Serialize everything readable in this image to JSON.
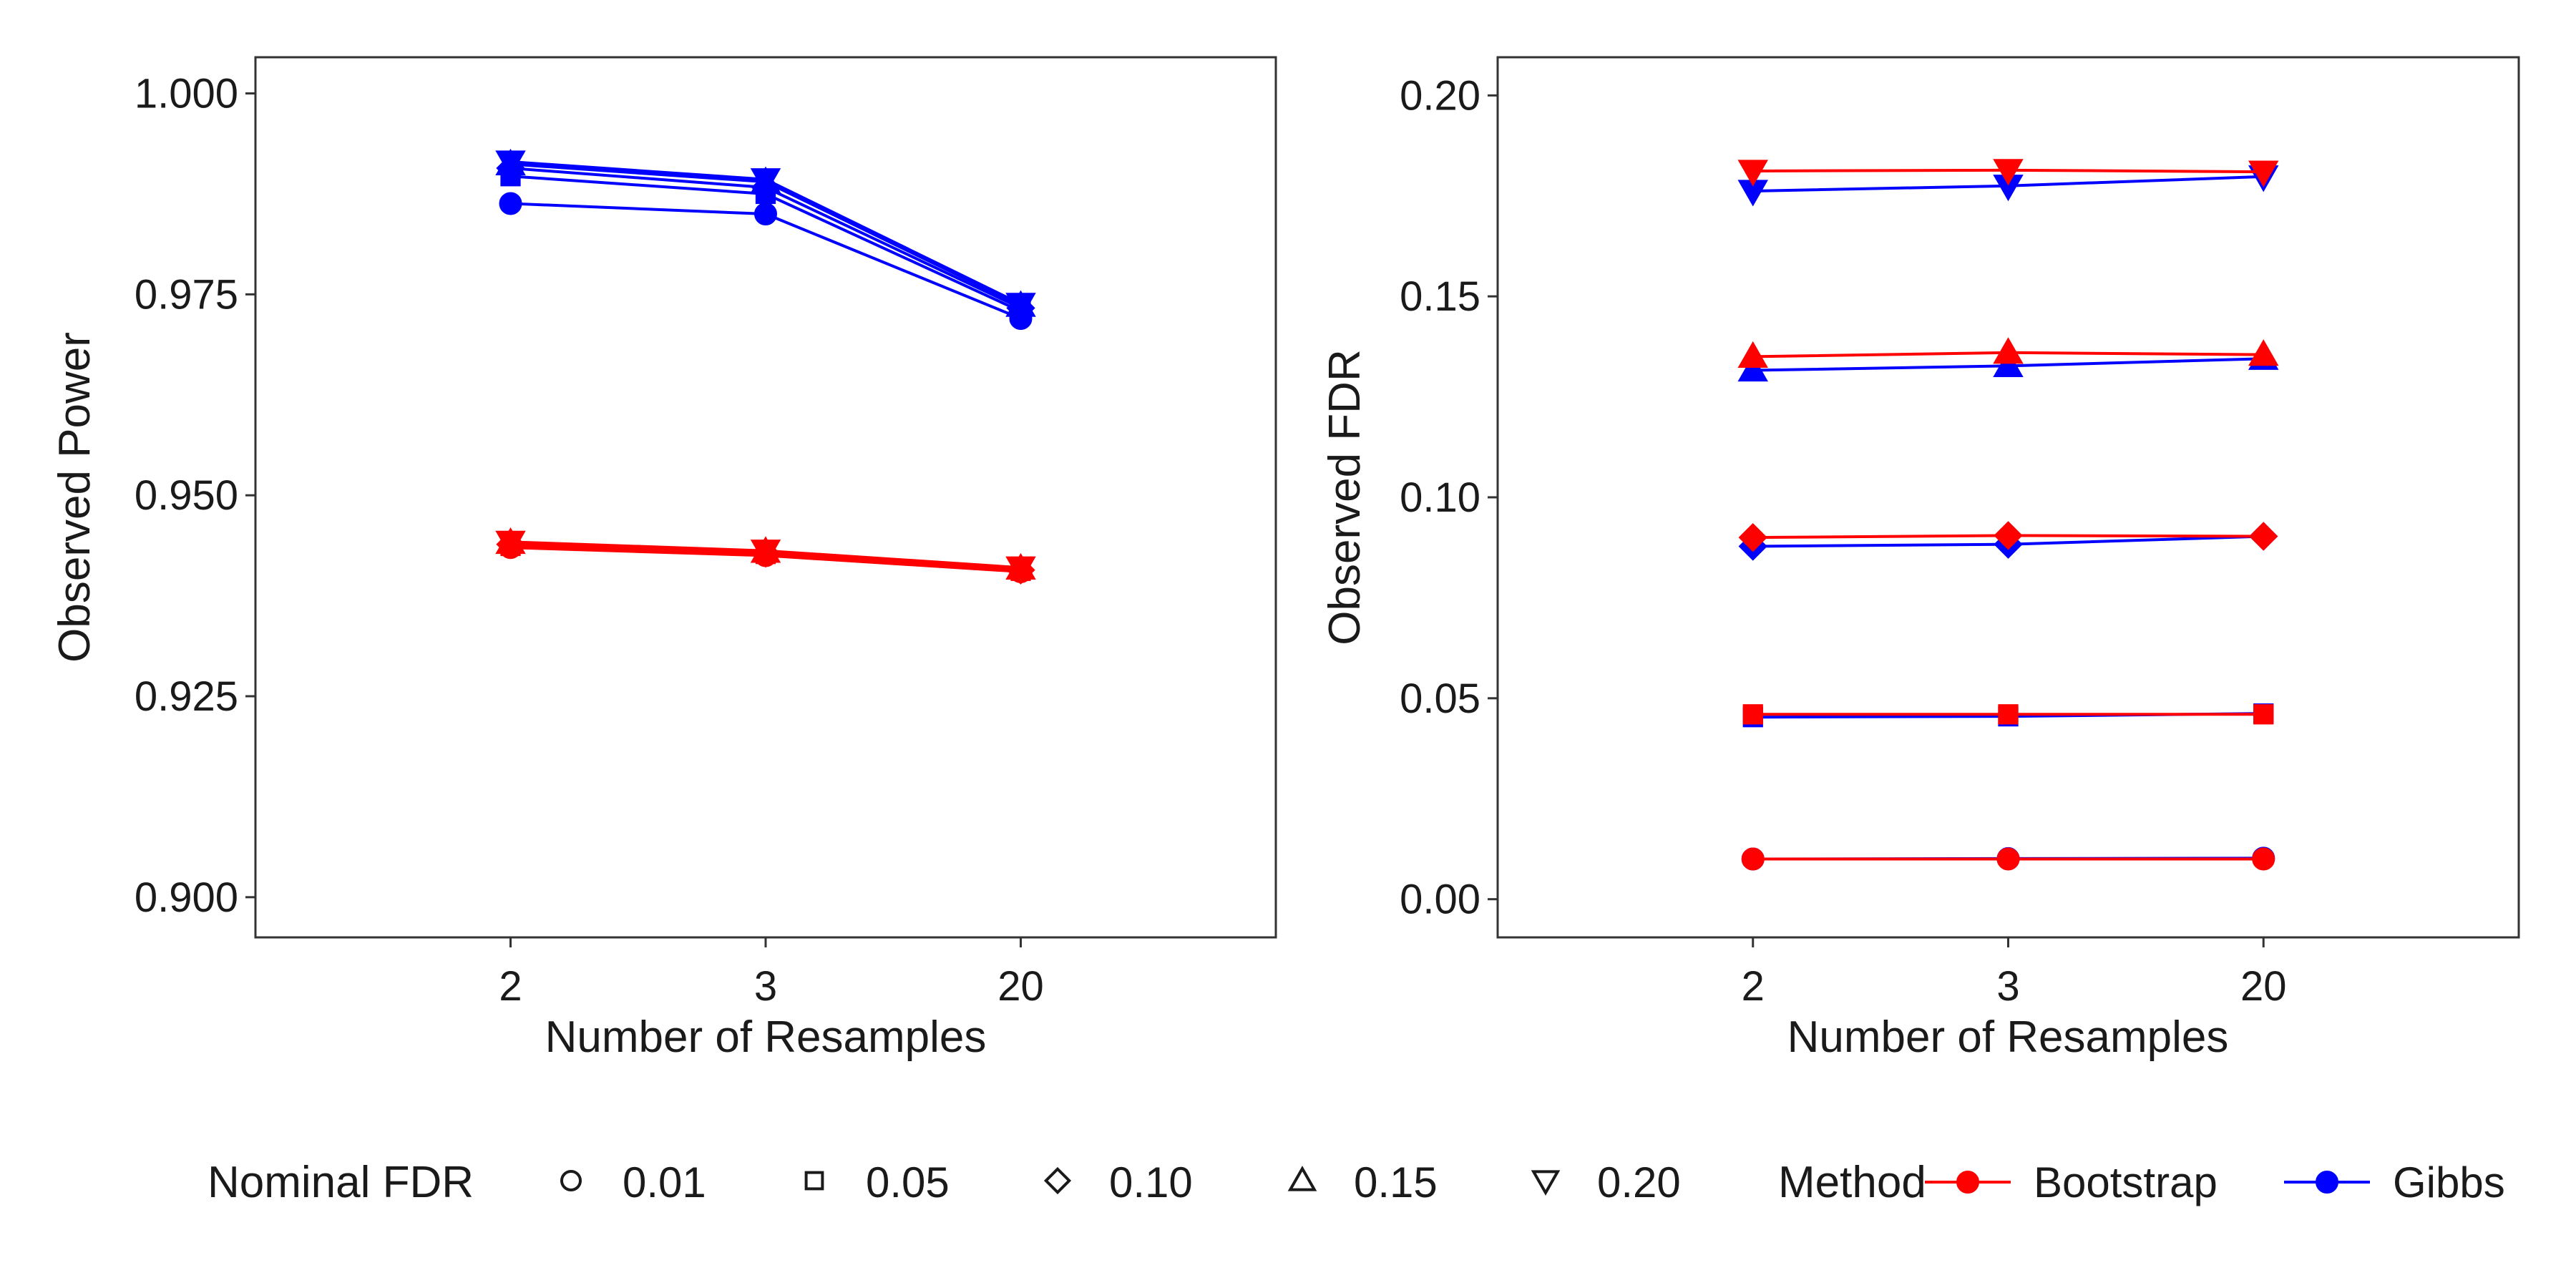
{
  "chart_data": [
    {
      "type": "line",
      "panel": "left",
      "xlabel": "Number of Resamples",
      "ylabel": "Observed Power",
      "categories": [
        "2",
        "3",
        "20"
      ],
      "ylim": [
        0.895,
        1.0045
      ],
      "yticks": [
        0.9,
        0.925,
        0.95,
        0.975,
        1.0
      ],
      "ytick_labels": [
        "0.900",
        "0.925",
        "0.950",
        "0.975",
        "1.000"
      ],
      "grid": false,
      "series": [
        {
          "method": "Bootstrap",
          "fdr": "0.01",
          "values": [
            0.9435,
            0.9425,
            0.9405
          ]
        },
        {
          "method": "Bootstrap",
          "fdr": "0.05",
          "values": [
            0.9437,
            0.9427,
            0.9406
          ]
        },
        {
          "method": "Bootstrap",
          "fdr": "0.10",
          "values": [
            0.9439,
            0.9428,
            0.9407
          ]
        },
        {
          "method": "Bootstrap",
          "fdr": "0.15",
          "values": [
            0.9441,
            0.943,
            0.9409
          ]
        },
        {
          "method": "Bootstrap",
          "fdr": "0.20",
          "values": [
            0.9442,
            0.9431,
            0.941
          ]
        },
        {
          "method": "Gibbs",
          "fdr": "0.01",
          "values": [
            0.9863,
            0.985,
            0.972
          ]
        },
        {
          "method": "Gibbs",
          "fdr": "0.05",
          "values": [
            0.9897,
            0.9875,
            0.9729
          ]
        },
        {
          "method": "Gibbs",
          "fdr": "0.10",
          "values": [
            0.9907,
            0.9883,
            0.9733
          ]
        },
        {
          "method": "Gibbs",
          "fdr": "0.15",
          "values": [
            0.9912,
            0.989,
            0.9736
          ]
        },
        {
          "method": "Gibbs",
          "fdr": "0.20",
          "values": [
            0.9915,
            0.9893,
            0.9738
          ]
        }
      ]
    },
    {
      "type": "line",
      "panel": "right",
      "xlabel": "Number of Resamples",
      "ylabel": "Observed FDR",
      "categories": [
        "2",
        "3",
        "20"
      ],
      "ylim": [
        -0.0095,
        0.2095
      ],
      "yticks": [
        0.0,
        0.05,
        0.1,
        0.15,
        0.2
      ],
      "ytick_labels": [
        "0.00",
        "0.05",
        "0.10",
        "0.15",
        "0.20"
      ],
      "grid": false,
      "series": [
        {
          "method": "Gibbs",
          "fdr": "0.01",
          "values": [
            0.01,
            0.0101,
            0.0102
          ]
        },
        {
          "method": "Gibbs",
          "fdr": "0.05",
          "values": [
            0.0453,
            0.0455,
            0.0462
          ]
        },
        {
          "method": "Gibbs",
          "fdr": "0.10",
          "values": [
            0.0878,
            0.0883,
            0.0903
          ]
        },
        {
          "method": "Gibbs",
          "fdr": "0.15",
          "values": [
            0.1316,
            0.1327,
            0.1345
          ]
        },
        {
          "method": "Gibbs",
          "fdr": "0.20",
          "values": [
            0.1762,
            0.1775,
            0.1798
          ]
        },
        {
          "method": "Bootstrap",
          "fdr": "0.01",
          "values": [
            0.01,
            0.01,
            0.01
          ]
        },
        {
          "method": "Bootstrap",
          "fdr": "0.05",
          "values": [
            0.046,
            0.046,
            0.046
          ]
        },
        {
          "method": "Bootstrap",
          "fdr": "0.10",
          "values": [
            0.09,
            0.0905,
            0.0903
          ]
        },
        {
          "method": "Bootstrap",
          "fdr": "0.15",
          "values": [
            0.135,
            0.136,
            0.1355
          ]
        },
        {
          "method": "Bootstrap",
          "fdr": "0.20",
          "values": [
            0.1812,
            0.1814,
            0.181
          ]
        }
      ]
    }
  ],
  "legend": {
    "placement": "bottom",
    "shape_title": "Nominal FDR",
    "shape_items": [
      {
        "label": "0.01",
        "shape": "circle"
      },
      {
        "label": "0.05",
        "shape": "square"
      },
      {
        "label": "0.10",
        "shape": "diamond"
      },
      {
        "label": "0.15",
        "shape": "triangle-up"
      },
      {
        "label": "0.20",
        "shape": "triangle-down"
      }
    ],
    "color_title": "Method",
    "color_items": [
      {
        "label": "Bootstrap",
        "color": "#ff0000"
      },
      {
        "label": "Gibbs",
        "color": "#0000ff"
      }
    ]
  },
  "colors": {
    "Bootstrap": "#ff0000",
    "Gibbs": "#0000ff"
  }
}
